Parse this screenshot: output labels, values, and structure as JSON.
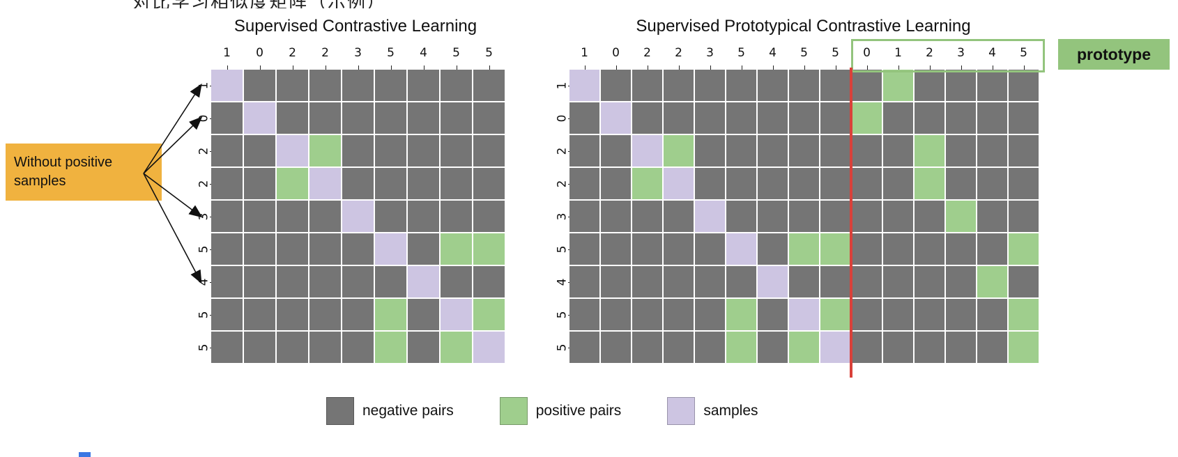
{
  "page": {
    "top_partial_text": "对比学习相似度矩阵（示例）"
  },
  "colors": {
    "negative": "#757575",
    "positive": "#9fce8d",
    "sample": "#cdc5e2",
    "annotation_box": "#f0b23f",
    "prototype_green": "#93c47d",
    "red_line": "#d9413a"
  },
  "left_matrix": {
    "title": "Supervised Contrastive Learning",
    "col_labels": [
      "1",
      "0",
      "2",
      "2",
      "3",
      "5",
      "4",
      "5",
      "5"
    ],
    "row_labels": [
      "1",
      "0",
      "2",
      "2",
      "3",
      "5",
      "4",
      "5",
      "5"
    ],
    "cells": [
      "SNNNNNNNN",
      "NSNNNNNNN",
      "NNSPNNNNN",
      "NNPSNNNNN",
      "NNNNSNNNN",
      "NNNNNSNPP",
      "NNNNNNSNN",
      "NNNNNPNSP",
      "NNNNNPNPS"
    ]
  },
  "right_matrix": {
    "title": "Supervised Prototypical Contrastive Learning",
    "col_labels": [
      "1",
      "0",
      "2",
      "2",
      "3",
      "5",
      "4",
      "5",
      "5",
      "0",
      "1",
      "2",
      "3",
      "4",
      "5"
    ],
    "row_labels": [
      "1",
      "0",
      "2",
      "2",
      "3",
      "5",
      "4",
      "5",
      "5"
    ],
    "prototype_label": "prototype",
    "cells": [
      "SNNNNNNNNNPNNNN",
      "NSNNNNNNNPNNNNN",
      "NNSPNNNNNNNPNNN",
      "NNPSNNNNNNNPNNN",
      "NNNNSNNNNNNNPNN",
      "NNNNNSNPPNNNNNP",
      "NNNNNNSNNNNNNPN",
      "NNNNNPNSPNNNNNP",
      "NNNNNPNPSNNNNNP"
    ]
  },
  "annotation": {
    "text": "Without positive samples",
    "arrow_target_rows": [
      0,
      1,
      4,
      6
    ]
  },
  "legend": [
    {
      "label": "negative pairs",
      "color": "#757575"
    },
    {
      "label": "positive pairs",
      "color": "#9fce8d"
    },
    {
      "label": "samples",
      "color": "#cdc5e2"
    }
  ],
  "cell_key": {
    "N": "negative pair",
    "P": "positive pair",
    "S": "sample"
  }
}
